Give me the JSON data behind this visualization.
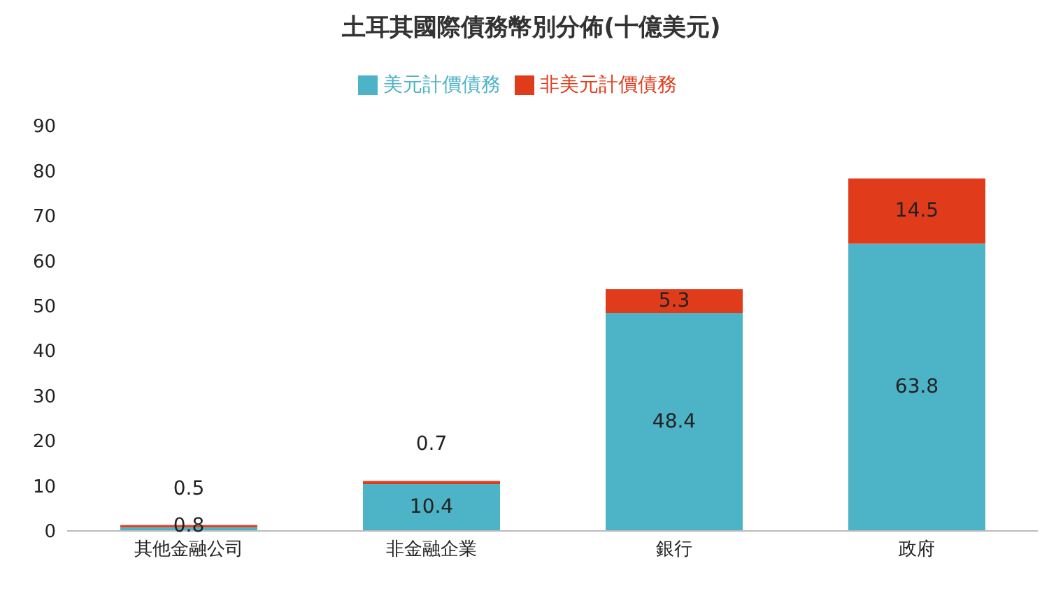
{
  "chart_data": {
    "type": "bar",
    "title": "土耳其國際債務幣別分佈(十億美元)",
    "categories": [
      "其他金融公司",
      "非金融企業",
      "銀行",
      "政府"
    ],
    "stacked": true,
    "data_labels": true,
    "legend": "top",
    "grid": false,
    "ylim": [
      0,
      90
    ],
    "yticks": [
      0,
      10,
      20,
      30,
      40,
      50,
      60,
      70,
      80,
      90
    ],
    "series": [
      {
        "name": "美元計價債務",
        "color": "#4db3c6",
        "values": [
          0.8,
          10.4,
          48.4,
          63.8
        ]
      },
      {
        "name": "非美元計價債務",
        "color": "#e03c1c",
        "values": [
          0.5,
          0.7,
          5.3,
          14.5
        ]
      }
    ]
  }
}
